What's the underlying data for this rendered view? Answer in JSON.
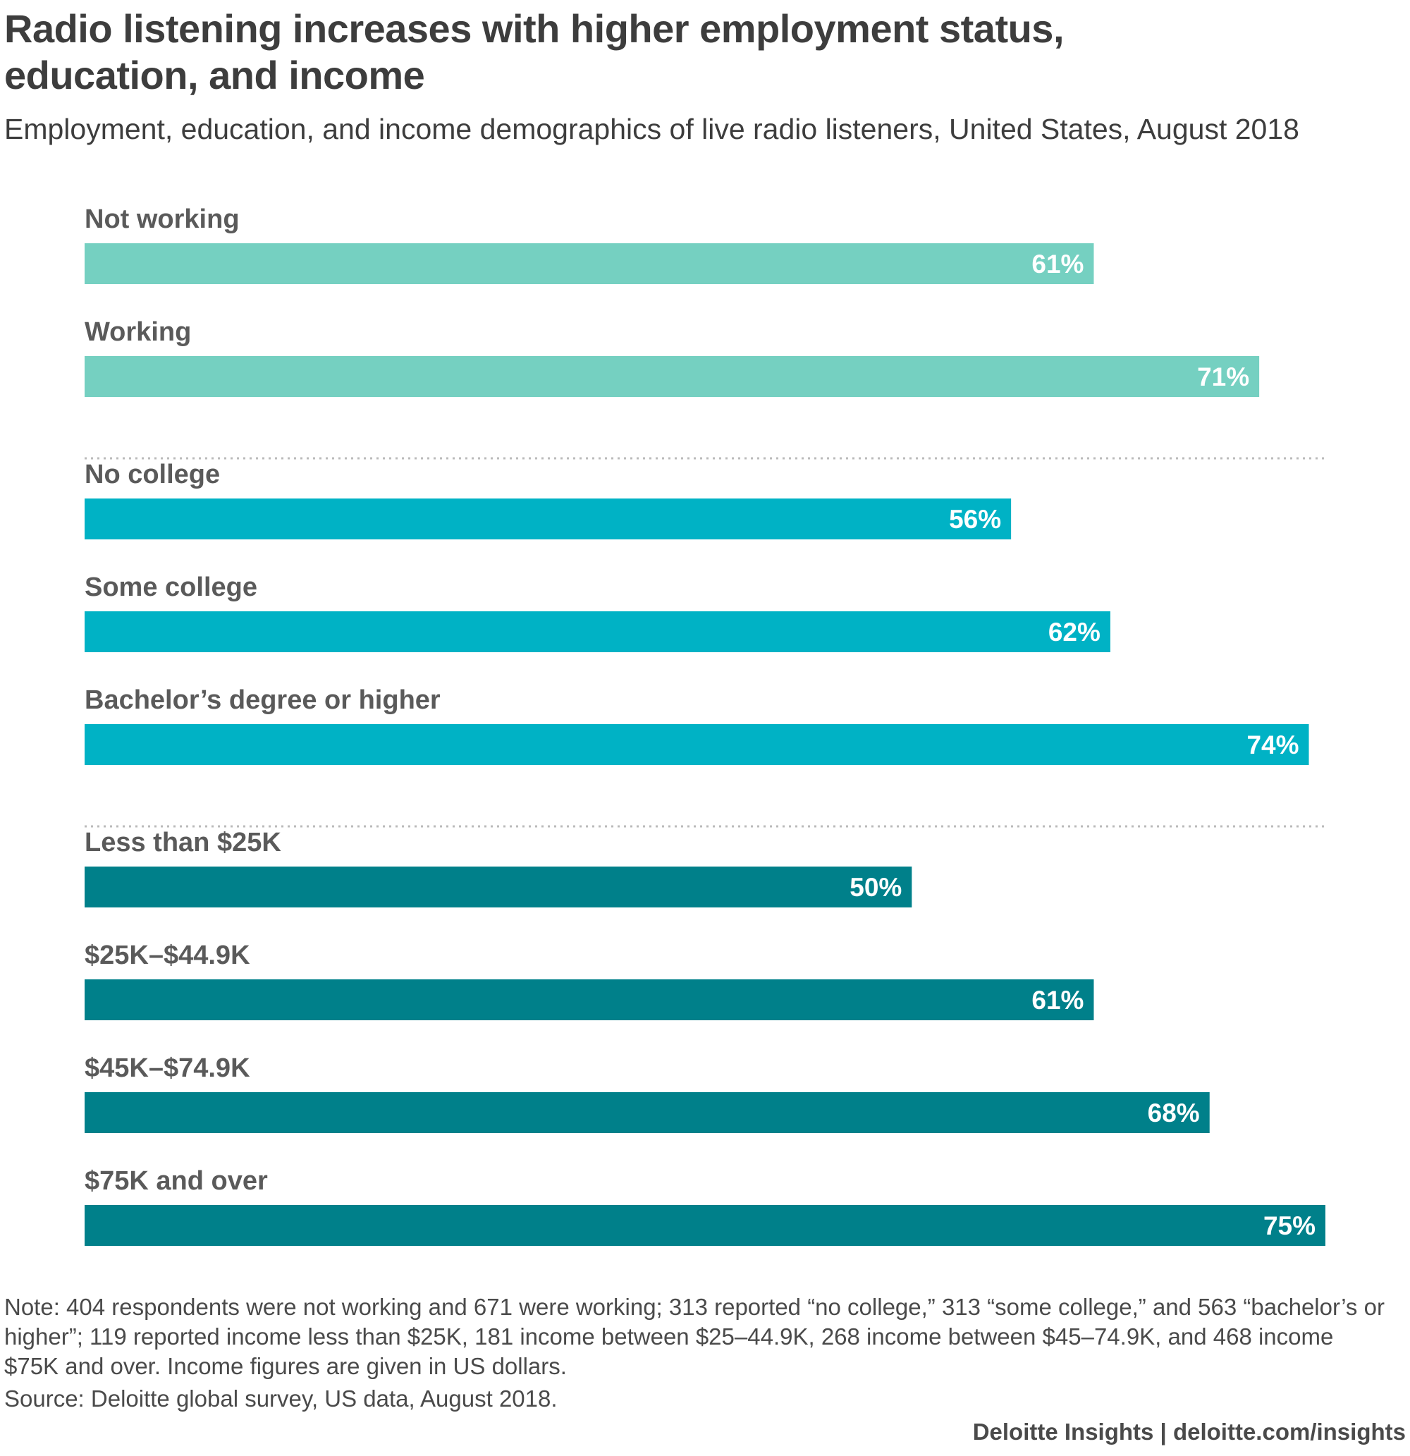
{
  "title": "Radio listening increases with higher employment status, education, and income",
  "subtitle": "Employment, education, and income demographics of live radio listeners, United States, August 2018",
  "note": "Note: 404 respondents were not working and 671 were working; 313 reported “no college,” 313 “some college,” and 563 “bachelor’s or higher”; 119 reported income less than $25K, 181 income between $25–44.9K, 268 income between $45–74.9K, and 468 income $75K and over. Income figures are given in US dollars.",
  "source": "Source: Deloitte global survey, US data, August 2018.",
  "credit": "Deloitte Insights | deloitte.com/insights",
  "colors": {
    "employment": "#75d0c1",
    "education": "#00b2c5",
    "income": "#00808a",
    "separator": "#bbbbbb"
  },
  "chart_data": {
    "type": "bar",
    "orientation": "horizontal",
    "unit": "%",
    "xlim": [
      0,
      75
    ],
    "grid": false,
    "groups": [
      {
        "key": "employment",
        "categories": [
          "Not working",
          "Working"
        ],
        "values": [
          61,
          71
        ]
      },
      {
        "key": "education",
        "categories": [
          "No college",
          "Some college",
          "Bachelor’s degree or higher"
        ],
        "values": [
          56,
          62,
          74
        ]
      },
      {
        "key": "income",
        "categories": [
          "Less than $25K",
          "$25K–$44.9K",
          "$45K–$74.9K",
          "$75K and over"
        ],
        "values": [
          50,
          61,
          68,
          75
        ]
      }
    ]
  }
}
